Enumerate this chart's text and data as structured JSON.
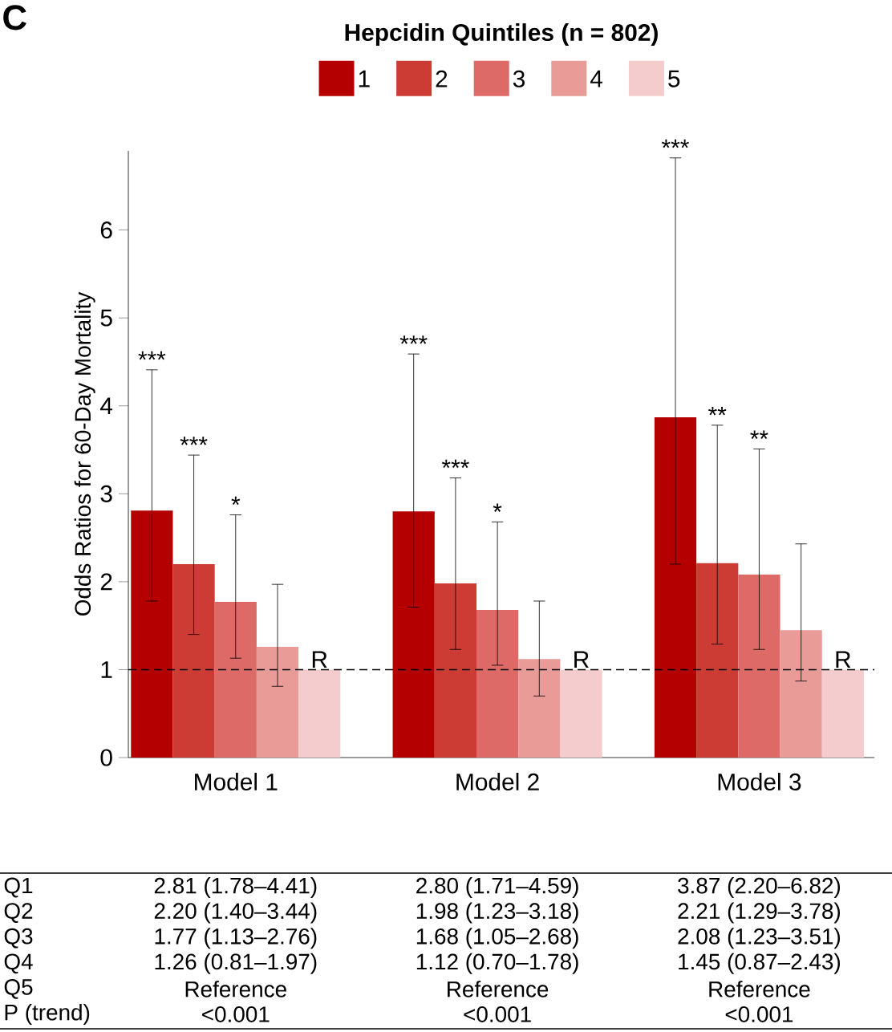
{
  "chart_data": {
    "type": "bar",
    "legend_title": "Hepcidin Quintiles (n = 802)",
    "ylabel": "Odds Ratios for 60-Day Mortality",
    "categories": [
      "Model 1",
      "Model 2",
      "Model 3"
    ],
    "series": [
      {
        "name": "1",
        "color": "#b50000",
        "values": [
          2.81,
          2.8,
          3.87
        ],
        "errors": [
          [
            1.78,
            4.41
          ],
          [
            1.71,
            4.59
          ],
          [
            2.2,
            6.82
          ]
        ]
      },
      {
        "name": "2",
        "color": "#cc3c34",
        "values": [
          2.2,
          1.98,
          2.21
        ],
        "errors": [
          [
            1.4,
            3.44
          ],
          [
            1.23,
            3.18
          ],
          [
            1.29,
            3.78
          ]
        ]
      },
      {
        "name": "3",
        "color": "#de6a68",
        "values": [
          1.77,
          1.68,
          2.08
        ],
        "errors": [
          [
            1.13,
            2.76
          ],
          [
            1.05,
            2.68
          ],
          [
            1.23,
            3.51
          ]
        ]
      },
      {
        "name": "4",
        "color": "#e99b98",
        "values": [
          1.26,
          1.12,
          1.45
        ],
        "errors": [
          [
            0.81,
            1.97
          ],
          [
            0.7,
            1.78
          ],
          [
            0.87,
            2.43
          ]
        ]
      },
      {
        "name": "5",
        "color": "#f5cccd",
        "values": [
          1,
          1,
          1
        ],
        "errors": [
          null,
          null,
          null
        ],
        "value_labels": [
          "R",
          "R",
          "R"
        ]
      }
    ],
    "ylim": [
      0,
      6.9
    ],
    "yticks": [
      0,
      1,
      2,
      3,
      4,
      5,
      6
    ],
    "ref_lines": [
      {
        "axis": "y",
        "value": 1,
        "line_style": "dashed"
      }
    ],
    "legend": "top",
    "annotations": [
      "C",
      "Q1",
      "2.81 (1.78–4.41)",
      "2.80 (1.71–4.59)",
      "3.87 (2.20–6.82)",
      "Q2",
      "2.20 (1.40–3.44)",
      "1.98 (1.23–3.18)",
      "2.21 (1.29–3.78)",
      "Q3",
      "1.77 (1.13–2.76)",
      "1.68 (1.05–2.68)",
      "2.08 (1.23–3.51)",
      "Q4",
      "1.26 (0.81–1.97)",
      "1.12 (0.70–1.78)",
      "1.45 (0.87–2.43)",
      "Q5",
      "Reference",
      "Reference",
      "Reference",
      "P (trend)",
      "<0.001",
      "<0.001",
      "<0.001",
      "***",
      "***",
      "*",
      "***",
      "***",
      "*",
      "***",
      "**",
      "**"
    ]
  }
}
